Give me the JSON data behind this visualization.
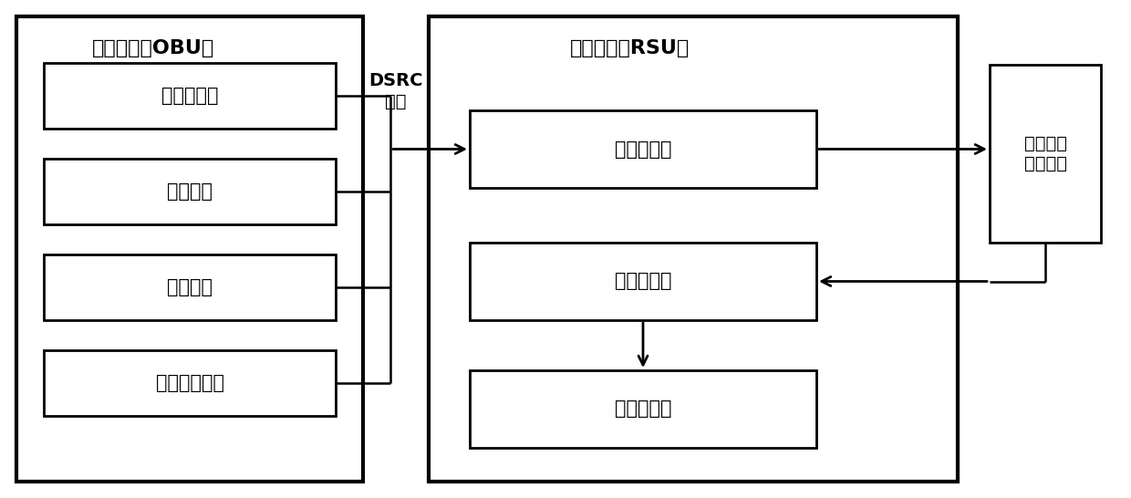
{
  "figsize": [
    12.4,
    5.46
  ],
  "dpi": 100,
  "bg_color": "#ffffff",
  "obu_label": "车载单元（OBU）",
  "rsu_label": "路侧单元（RSU）",
  "obu_items": [
    "车辆识别号",
    "车辆速度",
    "运行状态",
    "车辆空间位置"
  ],
  "rsu_items": [
    "临时数据库",
    "信号控制器",
    "交通信号灯"
  ],
  "center_label": "交通信息\n计算中心",
  "dsrc_label": "DSRC\n通信",
  "line_color": "#000000"
}
